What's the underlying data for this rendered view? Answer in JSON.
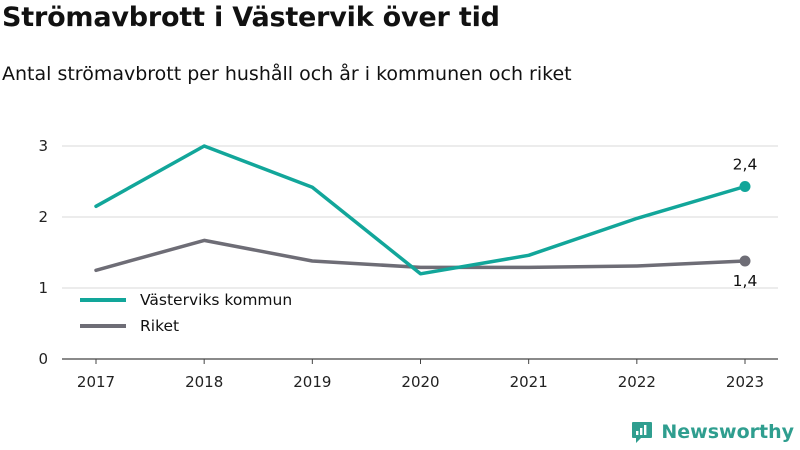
{
  "title": "Strömavbrott i Västervik över tid",
  "subtitle": "Antal strömavbrott per hushåll och år i kommunen och riket",
  "brand": {
    "name": "Newsworthy",
    "icon": "bar-chart-logo-icon",
    "color": "#2f9e8f"
  },
  "chart_data": {
    "type": "line",
    "title": "Strömavbrott i Västervik över tid",
    "subtitle": "Antal strömavbrott per hushåll och år i kommunen och riket",
    "xlabel": "",
    "ylabel": "",
    "categories": [
      "2017",
      "2018",
      "2019",
      "2020",
      "2021",
      "2022",
      "2023"
    ],
    "yticks": [
      "0",
      "1",
      "2",
      "3"
    ],
    "ylim": [
      0,
      3.2
    ],
    "grid": true,
    "legend_position": "lower-left",
    "series": [
      {
        "name": "Västerviks kommun",
        "color": "#12a69a",
        "values": [
          2.15,
          3.0,
          2.42,
          1.2,
          1.46,
          1.98,
          2.43
        ],
        "end_label": "2,4"
      },
      {
        "name": "Riket",
        "color": "#6e6d76",
        "values": [
          1.25,
          1.67,
          1.38,
          1.29,
          1.29,
          1.31,
          1.38
        ],
        "end_label": "1,4"
      }
    ]
  }
}
